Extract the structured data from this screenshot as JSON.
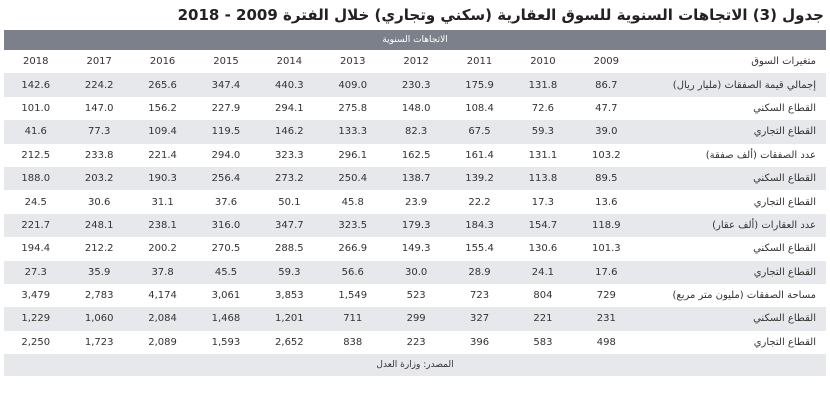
{
  "title": "جدول (3) الاتجاهات السنوية للسوق العقارية (سكني وتجاري) خلال الفترة 2009 - 2018",
  "banner": "الاتجاهات السنوية",
  "source": "المصدر: وزارة العدل",
  "header": {
    "label": "متغيرات السوق",
    "years": [
      "2009",
      "2010",
      "2011",
      "2012",
      "2013",
      "2014",
      "2015",
      "2016",
      "2017",
      "2018"
    ]
  },
  "rows": [
    {
      "label": "إجمالي قيمة الصفقات (مليار ريال)",
      "values": [
        "86.7",
        "131.8",
        "175.9",
        "230.3",
        "409.0",
        "440.3",
        "347.4",
        "265.6",
        "224.2",
        "142.6"
      ]
    },
    {
      "label": "القطاع السكني",
      "values": [
        "47.7",
        "72.6",
        "108.4",
        "148.0",
        "275.8",
        "294.1",
        "227.9",
        "156.2",
        "147.0",
        "101.0"
      ]
    },
    {
      "label": "القطاع التجاري",
      "values": [
        "39.0",
        "59.3",
        "67.5",
        "82.3",
        "133.3",
        "146.2",
        "119.5",
        "109.4",
        "77.3",
        "41.6"
      ]
    },
    {
      "label": "عدد الصفقات (ألف صفقة)",
      "values": [
        "103.2",
        "131.1",
        "161.4",
        "162.5",
        "296.1",
        "323.3",
        "294.0",
        "221.4",
        "233.8",
        "212.5"
      ]
    },
    {
      "label": "القطاع السكني",
      "values": [
        "89.5",
        "113.8",
        "139.2",
        "138.7",
        "250.4",
        "273.2",
        "256.4",
        "190.3",
        "203.2",
        "188.0"
      ]
    },
    {
      "label": "القطاع التجاري",
      "values": [
        "13.6",
        "17.3",
        "22.2",
        "23.9",
        "45.8",
        "50.1",
        "37.6",
        "31.1",
        "30.6",
        "24.5"
      ]
    },
    {
      "label": "عدد العقارات (ألف عقار)",
      "values": [
        "118.9",
        "154.7",
        "184.3",
        "179.3",
        "323.5",
        "347.7",
        "316.0",
        "238.1",
        "248.1",
        "221.7"
      ]
    },
    {
      "label": "القطاع السكني",
      "values": [
        "101.3",
        "130.6",
        "155.4",
        "149.3",
        "266.9",
        "288.5",
        "270.5",
        "200.2",
        "212.2",
        "194.4"
      ]
    },
    {
      "label": "القطاع التجاري",
      "values": [
        "17.6",
        "24.1",
        "28.9",
        "30.0",
        "56.6",
        "59.3",
        "45.5",
        "37.8",
        "35.9",
        "27.3"
      ]
    },
    {
      "label": "مساحة الصفقات (مليون متر مربع)",
      "values": [
        "729",
        "804",
        "723",
        "523",
        "1,549",
        "3,853",
        "3,061",
        "4,174",
        "2,783",
        "3,479"
      ]
    },
    {
      "label": "القطاع السكني",
      "values": [
        "231",
        "221",
        "327",
        "299",
        "711",
        "1,201",
        "1,468",
        "2,084",
        "1,060",
        "1,229"
      ]
    },
    {
      "label": "القطاع التجاري",
      "values": [
        "498",
        "583",
        "396",
        "223",
        "838",
        "2,652",
        "1,593",
        "2,089",
        "1,723",
        "2,250"
      ]
    }
  ]
}
